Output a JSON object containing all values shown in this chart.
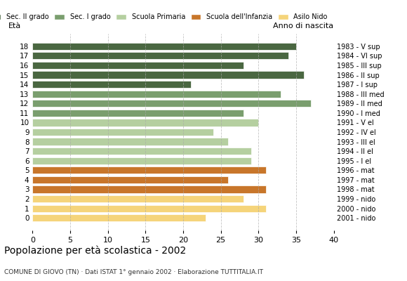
{
  "ages": [
    18,
    17,
    16,
    15,
    14,
    13,
    12,
    11,
    10,
    9,
    8,
    7,
    6,
    5,
    4,
    3,
    2,
    1,
    0
  ],
  "values": [
    35,
    34,
    28,
    36,
    21,
    33,
    37,
    28,
    30,
    24,
    26,
    29,
    29,
    31,
    26,
    31,
    28,
    31,
    23
  ],
  "anno_nascita": [
    "1983 - V sup",
    "1984 - VI sup",
    "1985 - III sup",
    "1986 - II sup",
    "1987 - I sup",
    "1988 - III med",
    "1989 - II med",
    "1990 - I med",
    "1991 - V el",
    "1992 - IV el",
    "1993 - III el",
    "1994 - II el",
    "1995 - I el",
    "1996 - mat",
    "1997 - mat",
    "1998 - mat",
    "1999 - nido",
    "2000 - nido",
    "2001 - nido"
  ],
  "colors": [
    "#4a6741",
    "#4a6741",
    "#4a6741",
    "#4a6741",
    "#4a6741",
    "#7a9e6e",
    "#7a9e6e",
    "#7a9e6e",
    "#b5cfa0",
    "#b5cfa0",
    "#b5cfa0",
    "#b5cfa0",
    "#b5cfa0",
    "#c8762a",
    "#c8762a",
    "#c8762a",
    "#f5d47a",
    "#f5d47a",
    "#f5d47a"
  ],
  "legend_labels": [
    "Sec. II grado",
    "Sec. I grado",
    "Scuola Primaria",
    "Scuola dell'Infanzia",
    "Asilo Nido"
  ],
  "legend_colors": [
    "#4a6741",
    "#7a9e6e",
    "#b5cfa0",
    "#c8762a",
    "#f5d47a"
  ],
  "title": "Popolazione per età scolastica - 2002",
  "subtitle": "COMUNE DI GIOVO (TN) · Dati ISTAT 1° gennaio 2002 · Elaborazione TUTTITALIA.IT",
  "xlabel_left": "Età",
  "xlabel_right": "Anno di nascita",
  "xlim": [
    0,
    40
  ],
  "xticks": [
    0,
    5,
    10,
    15,
    20,
    25,
    30,
    35,
    40
  ],
  "background_color": "#ffffff",
  "grid_color": "#aaaaaa"
}
